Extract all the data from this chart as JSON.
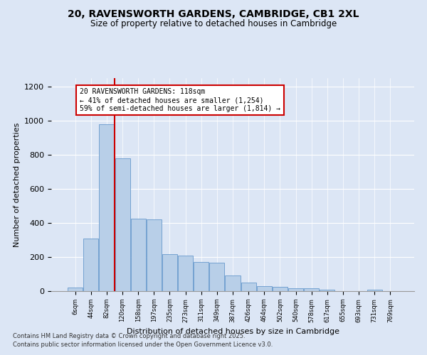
{
  "title1": "20, RAVENSWORTH GARDENS, CAMBRIDGE, CB1 2XL",
  "title2": "Size of property relative to detached houses in Cambridge",
  "xlabel": "Distribution of detached houses by size in Cambridge",
  "ylabel": "Number of detached properties",
  "categories": [
    "6sqm",
    "44sqm",
    "82sqm",
    "120sqm",
    "158sqm",
    "197sqm",
    "235sqm",
    "273sqm",
    "311sqm",
    "349sqm",
    "387sqm",
    "426sqm",
    "464sqm",
    "502sqm",
    "540sqm",
    "578sqm",
    "617sqm",
    "655sqm",
    "693sqm",
    "731sqm",
    "769sqm"
  ],
  "values": [
    22,
    310,
    980,
    780,
    425,
    420,
    215,
    210,
    170,
    165,
    90,
    50,
    30,
    25,
    15,
    15,
    7,
    0,
    0,
    7,
    0
  ],
  "bar_color": "#b8cfe8",
  "bar_edge_color": "#6699cc",
  "vline_color": "#cc0000",
  "vline_pos": 2.5,
  "annotation_text": "20 RAVENSWORTH GARDENS: 118sqm\n← 41% of detached houses are smaller (1,254)\n59% of semi-detached houses are larger (1,814) →",
  "annotation_box_color": "#cc0000",
  "ylim": [
    0,
    1250
  ],
  "yticks": [
    0,
    200,
    400,
    600,
    800,
    1000,
    1200
  ],
  "footnote1": "Contains HM Land Registry data © Crown copyright and database right 2025.",
  "footnote2": "Contains public sector information licensed under the Open Government Licence v3.0.",
  "bg_color": "#dce6f5",
  "plot_bg_color": "#dce6f5"
}
